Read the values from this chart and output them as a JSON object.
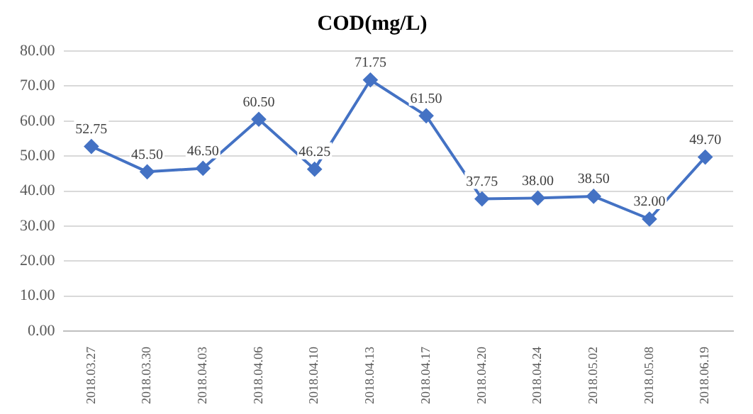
{
  "chart_data": {
    "type": "line",
    "title": "COD(mg/L)",
    "categories": [
      "2018.03.27",
      "2018.03.30",
      "2018.04.03",
      "2018.04.06",
      "2018.04.10",
      "2018.04.13",
      "2018.04.17",
      "2018.04.20",
      "2018.04.24",
      "2018.05.02",
      "2018.05.08",
      "2018.06.19"
    ],
    "series": [
      {
        "color": "#4472c4",
        "values": [
          52.75,
          45.5,
          46.5,
          60.5,
          46.25,
          71.75,
          61.5,
          37.75,
          38.0,
          38.5,
          32.0,
          49.7
        ],
        "value_labels": [
          "52.75",
          "45.50",
          "46.50",
          "60.50",
          "46.25",
          "71.75",
          "61.50",
          "37.75",
          "38.00",
          "38.50",
          "32.00",
          "49.70"
        ]
      }
    ],
    "ylim": [
      0,
      80
    ],
    "yticks": [
      {
        "value": 0,
        "label": "0.00"
      },
      {
        "value": 10,
        "label": "10.00"
      },
      {
        "value": 20,
        "label": "20.00"
      },
      {
        "value": 30,
        "label": "30.00"
      },
      {
        "value": 40,
        "label": "40.00"
      },
      {
        "value": 50,
        "label": "50.00"
      },
      {
        "value": 60,
        "label": "60.00"
      },
      {
        "value": 70,
        "label": "70.00"
      },
      {
        "value": 80,
        "label": "80.00"
      }
    ],
    "grid": "y",
    "legend": false,
    "marker": "diamond",
    "line_style": "solid"
  }
}
